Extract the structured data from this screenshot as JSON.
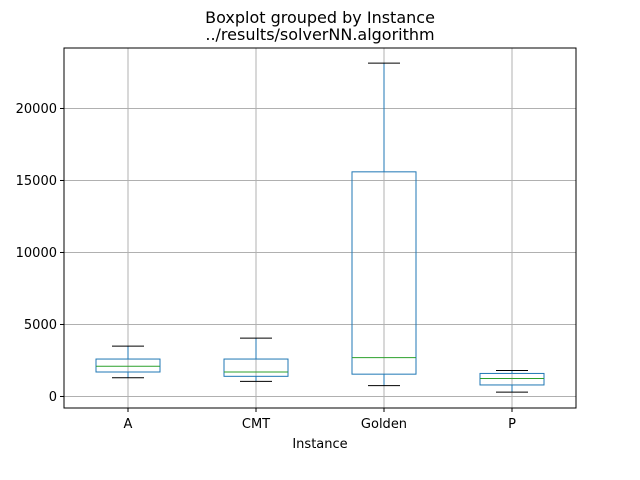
{
  "chart_data": {
    "type": "boxplot",
    "title": "Boxplot grouped by Instance",
    "subtitle": "../results/solverNN.algorithm",
    "xlabel": "Instance",
    "ylabel": "",
    "categories": [
      "A",
      "CMT",
      "Golden",
      "P"
    ],
    "boxes": [
      {
        "category": "A",
        "whisker_low": 1300,
        "q1": 1700,
        "median": 2100,
        "q3": 2600,
        "whisker_high": 3500
      },
      {
        "category": "CMT",
        "whisker_low": 1050,
        "q1": 1400,
        "median": 1700,
        "q3": 2600,
        "whisker_high": 4050
      },
      {
        "category": "Golden",
        "whisker_low": 750,
        "q1": 1550,
        "median": 2700,
        "q3": 15600,
        "whisker_high": 23150
      },
      {
        "category": "P",
        "whisker_low": 300,
        "q1": 800,
        "median": 1250,
        "q3": 1600,
        "whisker_high": 1800
      }
    ],
    "ylim": [
      -800,
      24200
    ],
    "yticks": [
      0,
      5000,
      10000,
      15000,
      20000
    ],
    "grid": true,
    "colors": {
      "box": "#1f77b4",
      "median": "#2ca02c",
      "cap": "#000000",
      "grid": "#b0b0b0"
    }
  }
}
